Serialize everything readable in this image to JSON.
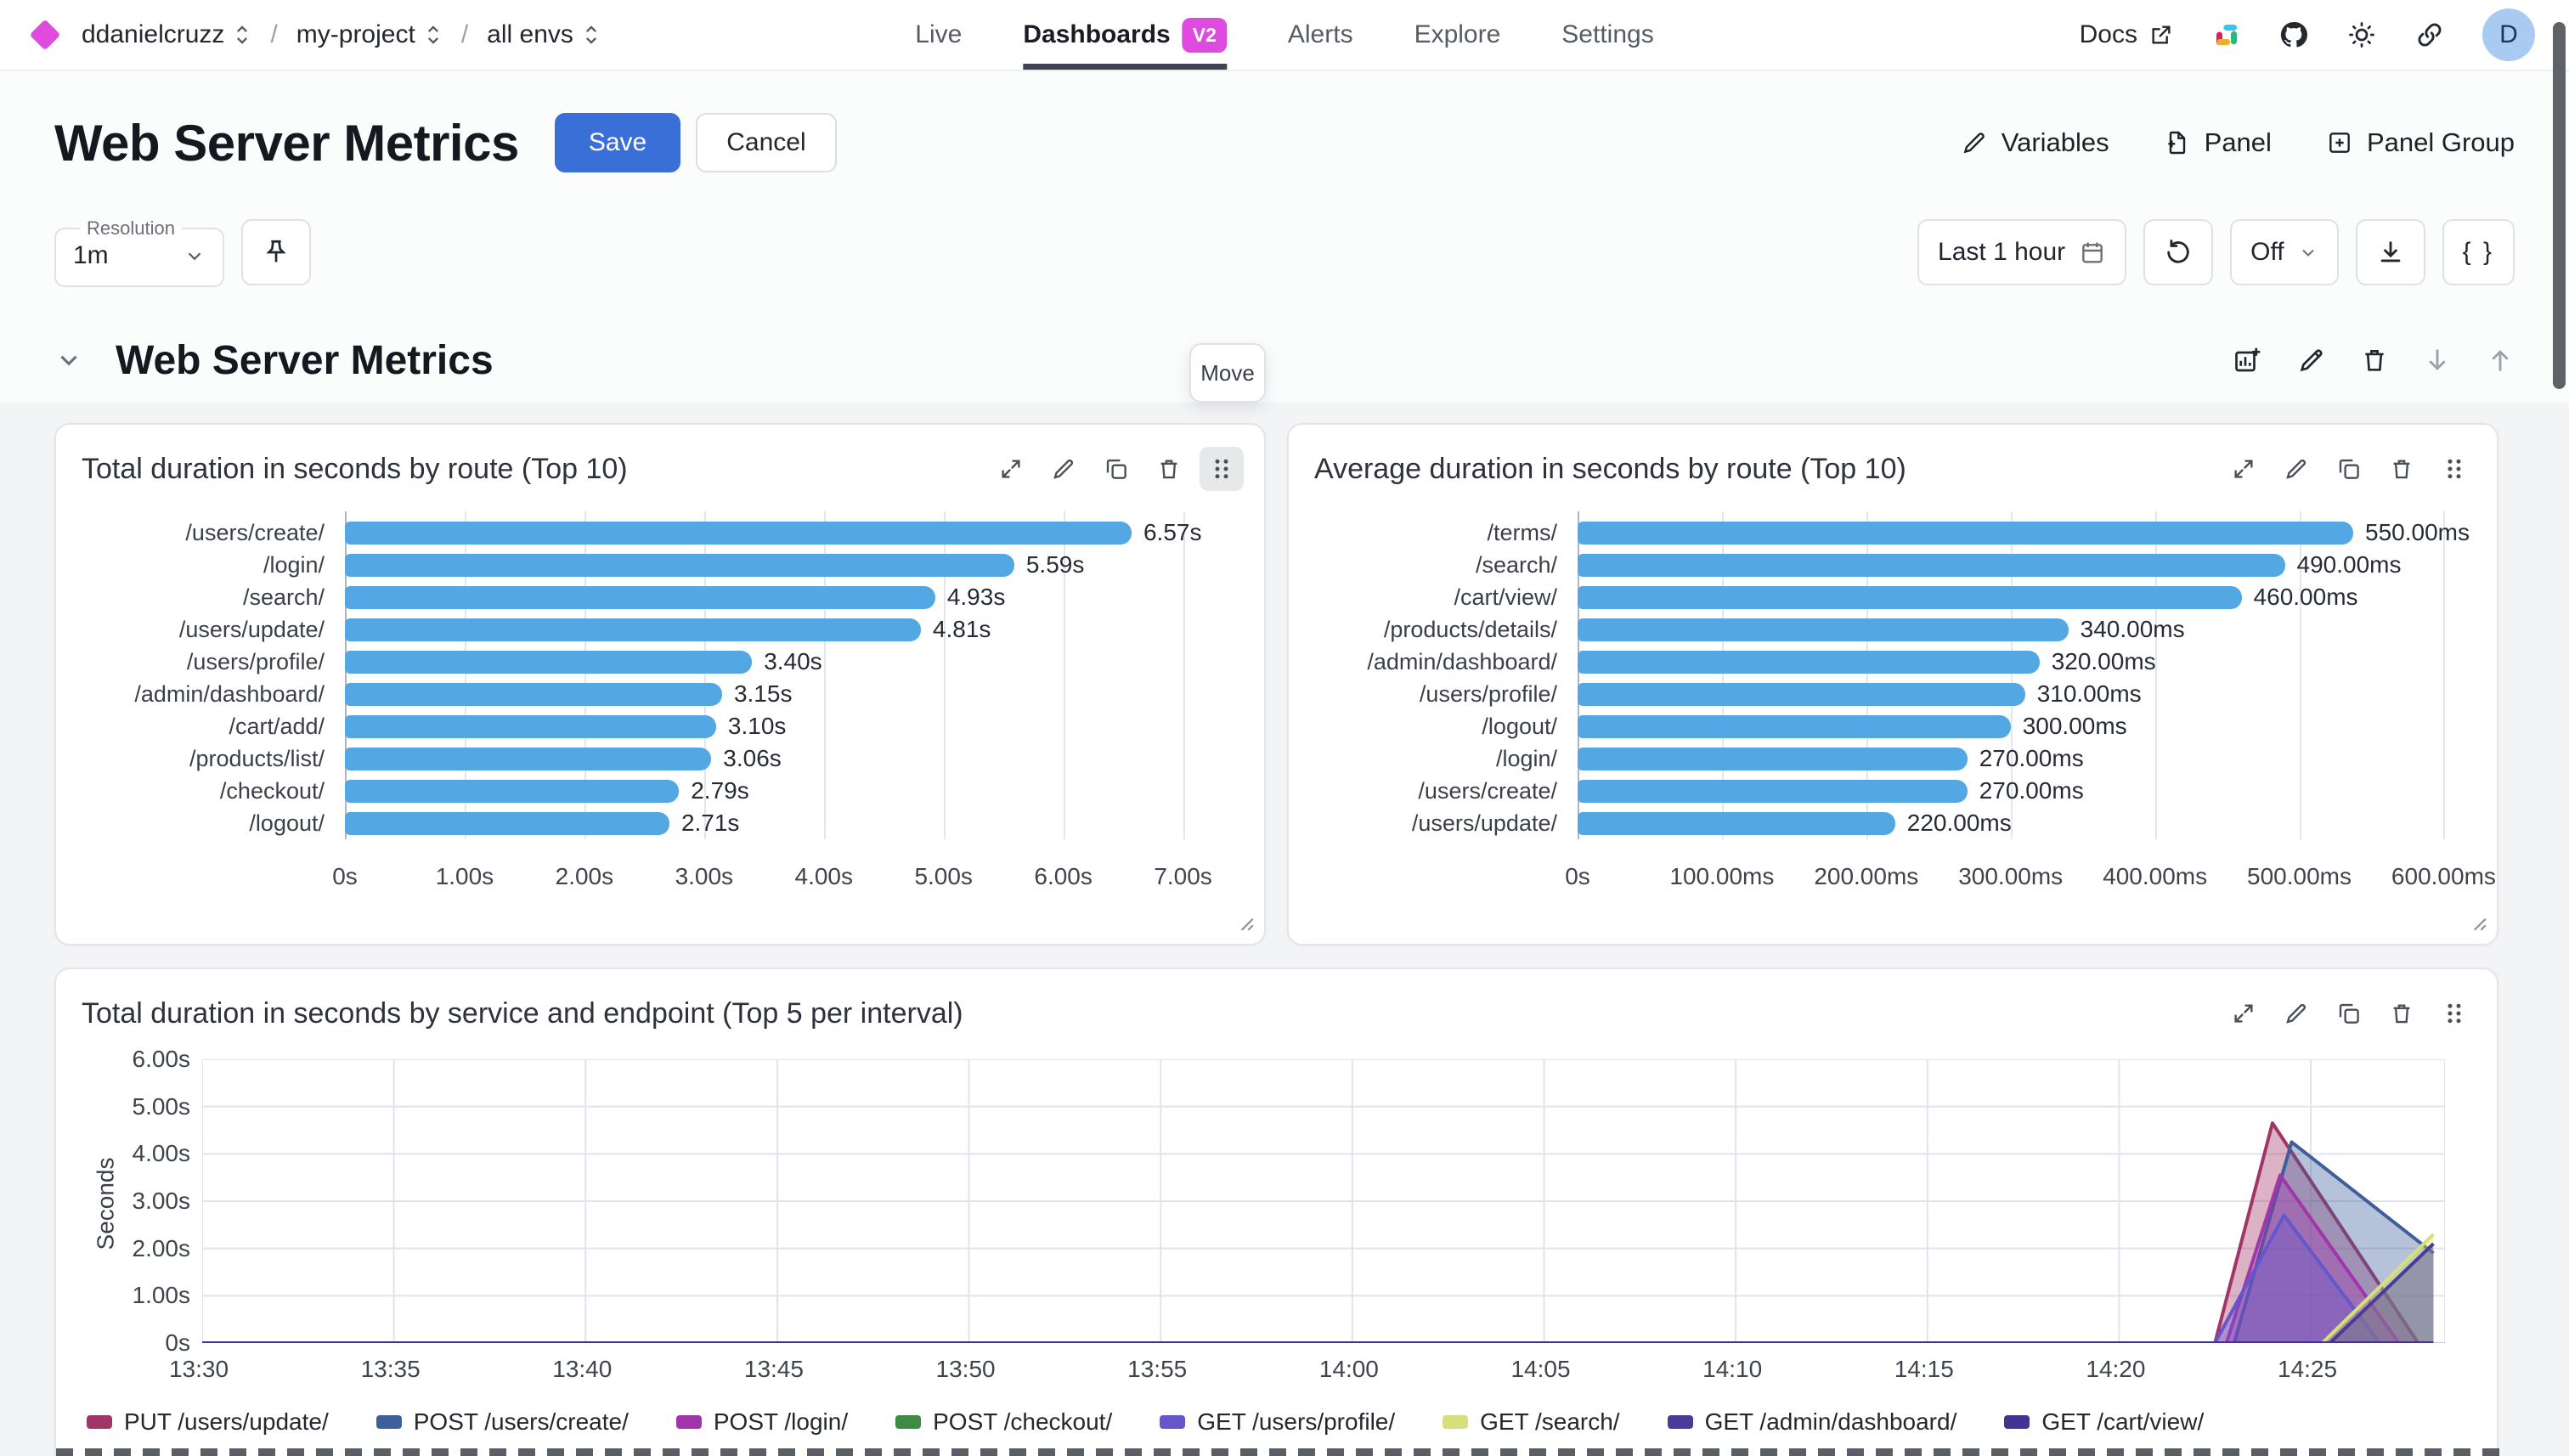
{
  "colors": {
    "accent_blue": "#3a6fd8",
    "magenta": "#de4bde",
    "bar_blue": "#53a8e4",
    "avatar_bg": "#a9cbf2"
  },
  "topnav": {
    "breadcrumb": {
      "org": "ddanielcruzz",
      "project": "my-project",
      "env": "all envs"
    },
    "tabs": [
      {
        "label": "Live",
        "active": false,
        "badge": ""
      },
      {
        "label": "Dashboards",
        "active": true,
        "badge": "V2"
      },
      {
        "label": "Alerts",
        "active": false,
        "badge": ""
      },
      {
        "label": "Explore",
        "active": false,
        "badge": ""
      },
      {
        "label": "Settings",
        "active": false,
        "badge": ""
      }
    ],
    "docs_label": "Docs",
    "avatar_initial": "D"
  },
  "header": {
    "title": "Web Server Metrics",
    "save_label": "Save",
    "cancel_label": "Cancel",
    "variables_label": "Variables",
    "panel_label": "Panel",
    "panel_group_label": "Panel Group"
  },
  "toolbar": {
    "resolution_label": "Resolution",
    "resolution_value": "1m",
    "time_range": "Last 1 hour",
    "refresh_interval": "Off",
    "braces_label": "{ }"
  },
  "group": {
    "title": "Web Server Metrics",
    "move_tooltip": "Move"
  },
  "chart_data": [
    {
      "type": "bar",
      "orientation": "horizontal",
      "title": "Total duration in seconds by route (Top 10)",
      "categories": [
        "/users/create/",
        "/login/",
        "/search/",
        "/users/update/",
        "/users/profile/",
        "/admin/dashboard/",
        "/cart/add/",
        "/products/list/",
        "/checkout/",
        "/logout/"
      ],
      "values": [
        6.57,
        5.59,
        4.93,
        4.81,
        3.4,
        3.15,
        3.1,
        3.06,
        2.79,
        2.71
      ],
      "value_labels": [
        "6.57s",
        "5.59s",
        "4.93s",
        "4.81s",
        "3.40s",
        "3.15s",
        "3.10s",
        "3.06s",
        "2.79s",
        "2.71s"
      ],
      "x_ticks": [
        "0s",
        "1.00s",
        "2.00s",
        "3.00s",
        "4.00s",
        "5.00s",
        "6.00s",
        "7.00s"
      ],
      "x_tick_values": [
        0,
        1,
        2,
        3,
        4,
        5,
        6,
        7
      ],
      "x_max": 7.45,
      "grid": true
    },
    {
      "type": "bar",
      "orientation": "horizontal",
      "title": "Average duration in seconds by route (Top 10)",
      "categories": [
        "/terms/",
        "/search/",
        "/cart/view/",
        "/products/details/",
        "/admin/dashboard/",
        "/users/profile/",
        "/logout/",
        "/login/",
        "/users/create/",
        "/users/update/"
      ],
      "values": [
        550,
        490,
        460,
        340,
        320,
        310,
        300,
        270,
        270,
        220
      ],
      "value_labels": [
        "550.00ms",
        "490.00ms",
        "460.00ms",
        "340.00ms",
        "320.00ms",
        "310.00ms",
        "300.00ms",
        "270.00ms",
        "270.00ms",
        "220.00ms"
      ],
      "x_ticks": [
        "0s",
        "100.00ms",
        "200.00ms",
        "300.00ms",
        "400.00ms",
        "500.00ms",
        "600.00ms"
      ],
      "x_tick_values": [
        0,
        100,
        200,
        300,
        400,
        500,
        600
      ],
      "x_max": 618,
      "grid": true
    },
    {
      "type": "area",
      "title": "Total duration in seconds by service and endpoint (Top 5 per interval)",
      "ylabel": "Seconds",
      "y_ticks": [
        "0s",
        "1.00s",
        "2.00s",
        "3.00s",
        "4.00s",
        "5.00s",
        "6.00s"
      ],
      "y_tick_values": [
        0,
        1,
        2,
        3,
        4,
        5,
        6
      ],
      "y_max": 6,
      "x_ticks": [
        "13:30",
        "13:35",
        "13:40",
        "13:45",
        "13:50",
        "13:55",
        "14:00",
        "14:05",
        "14:10",
        "14:15",
        "14:20",
        "14:25"
      ],
      "x_tick_minutes": [
        0,
        5,
        10,
        15,
        20,
        25,
        30,
        35,
        40,
        45,
        50,
        55
      ],
      "x_max_minutes": 58.5,
      "grid": true,
      "legend_position": "bottom",
      "series": [
        {
          "name": "PUT /users/update/",
          "color": "#a23567",
          "points": [
            [
              0,
              0
            ],
            [
              52.5,
              0
            ],
            [
              54,
              4.65
            ],
            [
              57.8,
              0
            ]
          ]
        },
        {
          "name": "POST /users/create/",
          "color": "#3e5e9c",
          "points": [
            [
              0,
              0
            ],
            [
              53,
              0
            ],
            [
              54.5,
              4.25
            ],
            [
              58.2,
              1.9
            ]
          ]
        },
        {
          "name": "POST /login/",
          "color": "#a335ac",
          "points": [
            [
              0,
              0
            ],
            [
              52.8,
              0
            ],
            [
              54.2,
              3.55
            ],
            [
              57.3,
              0
            ]
          ]
        },
        {
          "name": "POST /checkout/",
          "color": "#3e8c43",
          "points": [
            [
              0,
              0
            ],
            [
              58.2,
              0
            ]
          ]
        },
        {
          "name": "GET /users/profile/",
          "color": "#6656cc",
          "points": [
            [
              0,
              0
            ],
            [
              52.5,
              0
            ],
            [
              54.3,
              2.7
            ],
            [
              56.8,
              0
            ]
          ]
        },
        {
          "name": "GET /search/",
          "color": "#d5e07a",
          "points": [
            [
              0,
              0
            ],
            [
              55.3,
              0
            ],
            [
              58.2,
              2.3
            ]
          ]
        },
        {
          "name": "GET /admin/dashboard/",
          "color": "#4a3a99",
          "points": [
            [
              0,
              0
            ],
            [
              55.5,
              0
            ],
            [
              58.2,
              2.1
            ]
          ]
        },
        {
          "name": "GET /cart/view/",
          "color": "#443394",
          "points": [
            [
              0,
              0
            ],
            [
              58.2,
              0
            ]
          ]
        }
      ]
    }
  ]
}
